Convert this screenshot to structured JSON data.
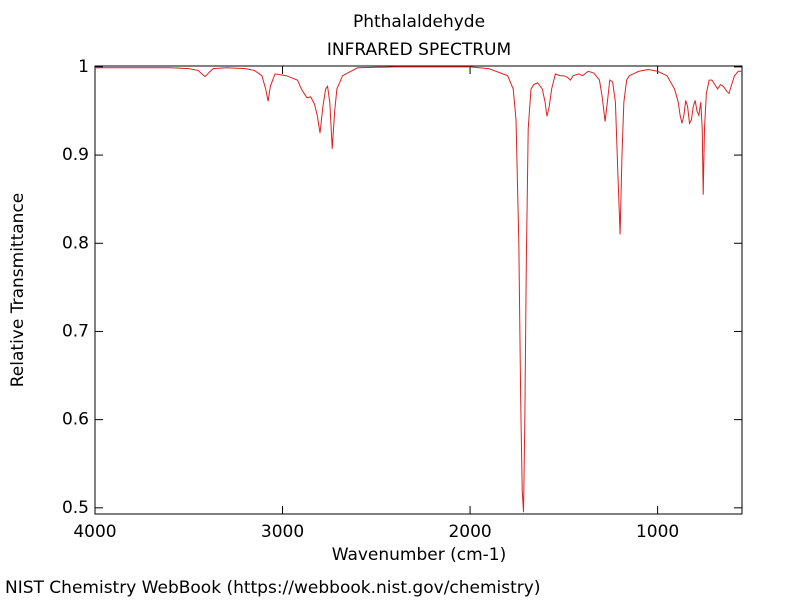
{
  "chart_data": {
    "type": "line",
    "title": "Phthalaldehyde",
    "subtitle": "INFRARED SPECTRUM",
    "x_label": "Wavenumber (cm-1)",
    "y_label": "Relative Transmittance",
    "source": "NIST Chemistry WebBook (https://webbook.nist.gov/chemistry)",
    "xlim": [
      4000,
      550
    ],
    "ylim": [
      0.493,
      1.001
    ],
    "xticks": [
      4000,
      3000,
      2000,
      1000
    ],
    "yticks": [
      0.5,
      0.6,
      0.7,
      0.8,
      0.9,
      1
    ],
    "series": [
      {
        "name": "Phthalaldehyde",
        "color": "#e02020",
        "x": [
          4000,
          3800,
          3600,
          3500,
          3450,
          3430,
          3413,
          3395,
          3370,
          3300,
          3200,
          3150,
          3110,
          3090,
          3077,
          3065,
          3040,
          2980,
          2920,
          2900,
          2870,
          2850,
          2830,
          2815,
          2800,
          2785,
          2770,
          2760,
          2748,
          2735,
          2722,
          2710,
          2680,
          2600,
          2400,
          2200,
          2000,
          1900,
          1800,
          1770,
          1755,
          1740,
          1730,
          1722,
          1715,
          1708,
          1700,
          1690,
          1675,
          1660,
          1640,
          1615,
          1600,
          1590,
          1578,
          1565,
          1545,
          1520,
          1500,
          1480,
          1465,
          1450,
          1420,
          1400,
          1370,
          1340,
          1310,
          1295,
          1280,
          1268,
          1255,
          1240,
          1225,
          1212,
          1200,
          1190,
          1180,
          1165,
          1150,
          1100,
          1050,
          1000,
          950,
          910,
          890,
          880,
          870,
          860,
          850,
          840,
          830,
          820,
          810,
          800,
          790,
          780,
          770,
          762,
          757,
          750,
          740,
          725,
          710,
          695,
          680,
          665,
          650,
          630,
          619,
          605,
          590,
          570,
          550
        ],
        "values": [
          0.999,
          0.999,
          0.999,
          0.998,
          0.996,
          0.992,
          0.989,
          0.993,
          0.998,
          0.999,
          0.998,
          0.996,
          0.99,
          0.975,
          0.961,
          0.978,
          0.992,
          0.99,
          0.985,
          0.975,
          0.965,
          0.966,
          0.958,
          0.945,
          0.925,
          0.955,
          0.975,
          0.978,
          0.96,
          0.907,
          0.95,
          0.975,
          0.99,
          0.999,
          1.0,
          1.0,
          1.0,
          0.998,
          0.99,
          0.975,
          0.94,
          0.8,
          0.62,
          0.52,
          0.495,
          0.6,
          0.78,
          0.93,
          0.975,
          0.98,
          0.982,
          0.975,
          0.96,
          0.944,
          0.955,
          0.975,
          0.992,
          0.99,
          0.99,
          0.988,
          0.985,
          0.99,
          0.992,
          0.99,
          0.995,
          0.993,
          0.985,
          0.965,
          0.938,
          0.96,
          0.985,
          0.983,
          0.96,
          0.88,
          0.81,
          0.9,
          0.96,
          0.985,
          0.99,
          0.995,
          0.997,
          0.995,
          0.99,
          0.975,
          0.96,
          0.945,
          0.936,
          0.945,
          0.962,
          0.955,
          0.936,
          0.94,
          0.955,
          0.962,
          0.95,
          0.945,
          0.96,
          0.93,
          0.855,
          0.93,
          0.97,
          0.985,
          0.985,
          0.98,
          0.975,
          0.98,
          0.978,
          0.972,
          0.97,
          0.98,
          0.99,
          0.995,
          0.995
        ]
      }
    ]
  }
}
